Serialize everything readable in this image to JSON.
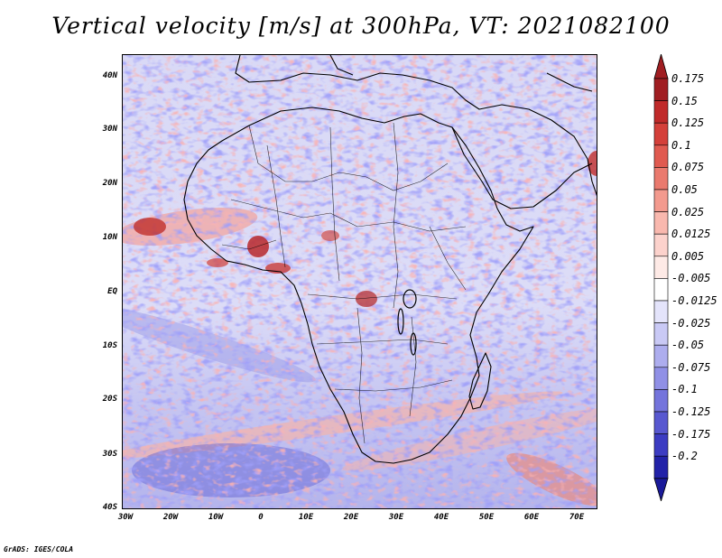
{
  "title": "Vertical velocity [m/s] at 300hPa, VT: 2021082100",
  "credit": "GrADS: IGES/COLA",
  "map": {
    "region": "Africa",
    "lon_range": [
      -30,
      75
    ],
    "lat_range": [
      -40,
      45
    ],
    "lat_ticks": [
      {
        "value": 40,
        "label": "40N"
      },
      {
        "value": 30,
        "label": "30N"
      },
      {
        "value": 20,
        "label": "20N"
      },
      {
        "value": 10,
        "label": "10N"
      },
      {
        "value": 0,
        "label": "EQ"
      },
      {
        "value": -10,
        "label": "10S"
      },
      {
        "value": -20,
        "label": "20S"
      },
      {
        "value": -30,
        "label": "30S"
      },
      {
        "value": -40,
        "label": "40S"
      }
    ],
    "lon_ticks": [
      {
        "value": -30,
        "label": "30W"
      },
      {
        "value": -20,
        "label": "20W"
      },
      {
        "value": -10,
        "label": "10W"
      },
      {
        "value": 0,
        "label": "0"
      },
      {
        "value": 10,
        "label": "10E"
      },
      {
        "value": 20,
        "label": "20E"
      },
      {
        "value": 30,
        "label": "30E"
      },
      {
        "value": 40,
        "label": "40E"
      },
      {
        "value": 50,
        "label": "50E"
      },
      {
        "value": 60,
        "label": "60E"
      },
      {
        "value": 70,
        "label": "70E"
      }
    ]
  },
  "colorbar": {
    "levels": [
      {
        "label": "0.175",
        "color": "#a01e22"
      },
      {
        "label": "0.15",
        "color": "#c02a2a"
      },
      {
        "label": "0.125",
        "color": "#d4403a"
      },
      {
        "label": "0.1",
        "color": "#e05a50"
      },
      {
        "label": "0.075",
        "color": "#ea7a6e"
      },
      {
        "label": "0.05",
        "color": "#f39a8e"
      },
      {
        "label": "0.025",
        "color": "#f9b8ae"
      },
      {
        "label": "0.0125",
        "color": "#fcd2cc"
      },
      {
        "label": "0.005",
        "color": "#feeae6"
      },
      {
        "label": "-0.005",
        "color": "#ffffff"
      },
      {
        "label": "-0.0125",
        "color": "#e4e4fb"
      },
      {
        "label": "-0.025",
        "color": "#c9c9f5"
      },
      {
        "label": "-0.05",
        "color": "#adadee"
      },
      {
        "label": "-0.075",
        "color": "#9090e6"
      },
      {
        "label": "-0.1",
        "color": "#7474dc"
      },
      {
        "label": "-0.125",
        "color": "#5858d0"
      },
      {
        "label": "-0.175",
        "color": "#3c3cc2"
      },
      {
        "label": "-0.2",
        "color": "#2222a8"
      }
    ],
    "top_arrow_color": "#a01e22",
    "bottom_arrow_color": "#1a1a9a"
  }
}
